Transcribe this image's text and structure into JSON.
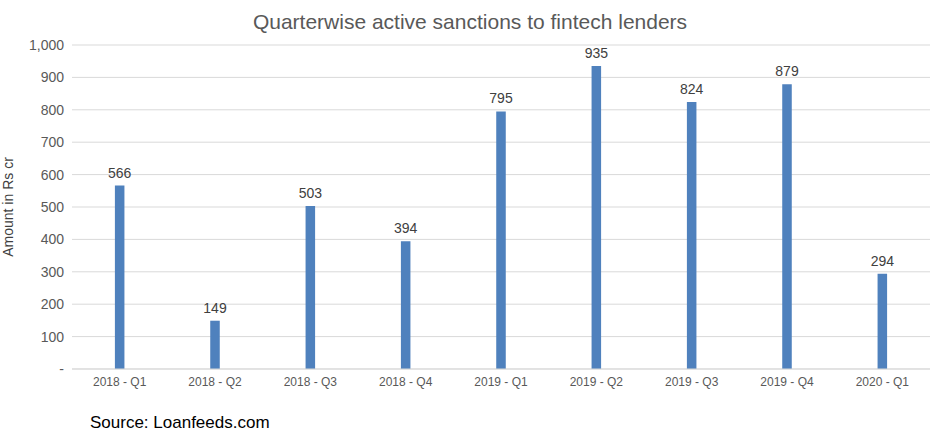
{
  "chart_data": {
    "type": "bar",
    "title": "Quarterwise active sanctions to fintech lenders",
    "y_label": "Amount in Rs cr",
    "source": "Source: Loanfeeds.com",
    "categories": [
      "2018 - Q1",
      "2018 - Q2",
      "2018 - Q3",
      "2018 - Q4",
      "2019 - Q1",
      "2019 - Q2",
      "2019 - Q3",
      "2019 - Q4",
      "2020 - Q1"
    ],
    "values": [
      566,
      149,
      503,
      394,
      795,
      935,
      824,
      879,
      294
    ],
    "color": "#4f81bd",
    "ylim": [
      0,
      1000
    ],
    "yticks": [
      {
        "value": 0,
        "label": "-"
      },
      100,
      200,
      300,
      400,
      500,
      600,
      700,
      800,
      900,
      {
        "value": 1000,
        "label": "1,000"
      }
    ],
    "grid": true,
    "data_labels": true
  }
}
